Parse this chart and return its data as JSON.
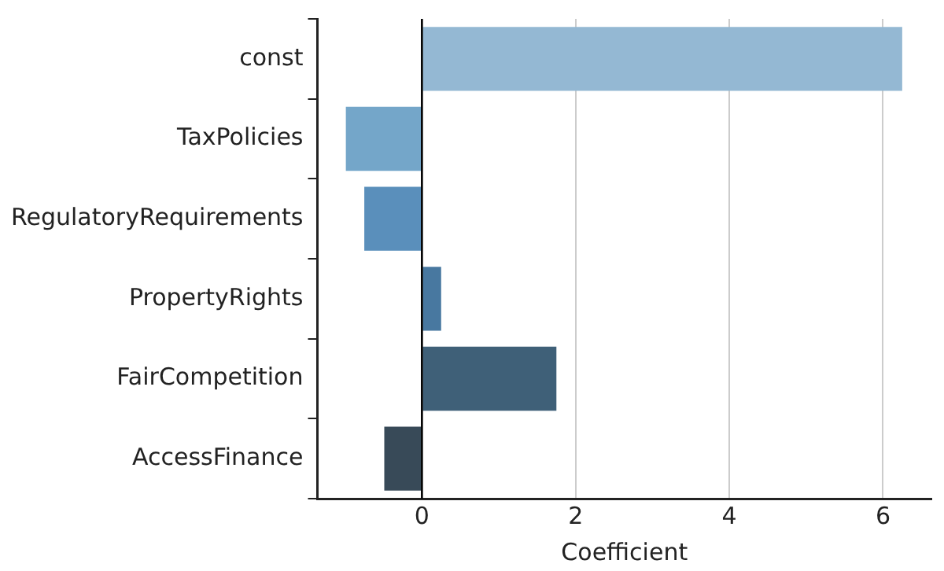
{
  "chart_data": {
    "type": "bar",
    "orientation": "horizontal",
    "xlabel": "Coefficient",
    "categories": [
      "const",
      "TaxPolicies",
      "RegulatoryRequirements",
      "PropertyRights",
      "FairCompetition",
      "AccessFinance"
    ],
    "values": [
      6.25,
      -0.99,
      -0.75,
      0.25,
      1.75,
      -0.49
    ],
    "colors": [
      "#94b8d3",
      "#74a6c9",
      "#5a8fbb",
      "#4878a0",
      "#3f6078",
      "#384a58"
    ],
    "xlim": [
      -1.36,
      6.63
    ],
    "xticks": [
      0,
      2,
      4,
      6
    ],
    "grid": "x",
    "ref_lines": [
      {
        "axis": "x",
        "value": 0,
        "color": "#000000"
      }
    ]
  }
}
